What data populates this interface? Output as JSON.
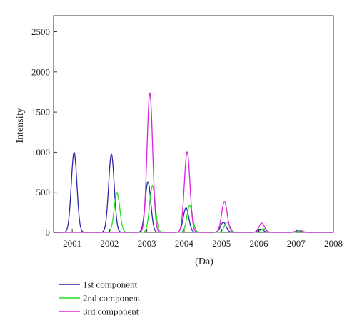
{
  "chart_data": {
    "type": "line",
    "title": "",
    "xlabel": "(Da)",
    "ylabel": "Intensity",
    "xlim": [
      2000.5,
      2008
    ],
    "ylim": [
      0,
      2700
    ],
    "xticks": [
      2001,
      2002,
      2003,
      2004,
      2005,
      2006,
      2007,
      2008
    ],
    "yticks": [
      0,
      500,
      1000,
      1500,
      2000,
      2500
    ],
    "grid": false,
    "legend_position": "bottom-left",
    "peak_width_sigma": 0.075,
    "series": [
      {
        "name": "1st component",
        "color": "#2a2aa8",
        "peaks": [
          {
            "x": 2001.05,
            "y": 1000
          },
          {
            "x": 2002.05,
            "y": 975
          },
          {
            "x": 2003.03,
            "y": 630
          },
          {
            "x": 2004.05,
            "y": 305
          },
          {
            "x": 2005.05,
            "y": 125
          },
          {
            "x": 2006.05,
            "y": 40
          },
          {
            "x": 2007.05,
            "y": 18
          }
        ]
      },
      {
        "name": "2nd component",
        "color": "#22dd22",
        "peaks": [
          {
            "x": 2002.2,
            "y": 490
          },
          {
            "x": 2003.15,
            "y": 580
          },
          {
            "x": 2004.15,
            "y": 335
          },
          {
            "x": 2005.15,
            "y": 125
          },
          {
            "x": 2006.12,
            "y": 45
          },
          {
            "x": 2007.12,
            "y": 18
          }
        ]
      },
      {
        "name": "3rd component",
        "color": "#dd22dd",
        "peaks": [
          {
            "x": 2003.08,
            "y": 1740
          },
          {
            "x": 2004.08,
            "y": 1005
          },
          {
            "x": 2005.08,
            "y": 385
          },
          {
            "x": 2006.08,
            "y": 115
          },
          {
            "x": 2007.08,
            "y": 30
          }
        ]
      }
    ]
  }
}
